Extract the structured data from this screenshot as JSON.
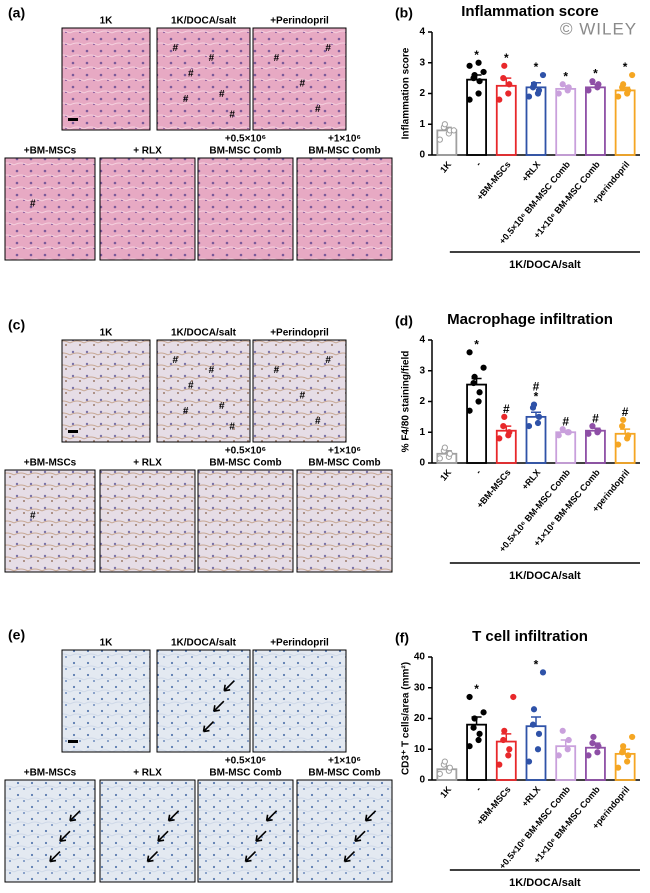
{
  "panels": [
    {
      "label": "(a)",
      "images": [
        {
          "caption": [
            "1K"
          ]
        },
        {
          "caption": [
            "1K/DOCA/salt"
          ]
        },
        {
          "caption": [
            "+Perindopril"
          ]
        },
        {
          "caption": [
            "+BM-MSCs"
          ]
        },
        {
          "caption": [
            "+ RLX"
          ]
        },
        {
          "caption": [
            "+0.5×10⁶",
            "BM-MSC Comb"
          ]
        },
        {
          "caption": [
            "+1×10⁶",
            "BM-MSC Comb"
          ]
        }
      ]
    },
    {
      "label": "(c)",
      "images": [
        {
          "caption": [
            "1K"
          ]
        },
        {
          "caption": [
            "1K/DOCA/salt"
          ]
        },
        {
          "caption": [
            "+Perindopril"
          ]
        },
        {
          "caption": [
            "+BM-MSCs"
          ]
        },
        {
          "caption": [
            "+ RLX"
          ]
        },
        {
          "caption": [
            "+0.5×10⁶",
            "BM-MSC Comb"
          ]
        },
        {
          "caption": [
            "+1×10⁶",
            "BM-MSC Comb"
          ]
        }
      ]
    },
    {
      "label": "(e)",
      "images": [
        {
          "caption": [
            "1K"
          ]
        },
        {
          "caption": [
            "1K/DOCA/salt"
          ]
        },
        {
          "caption": [
            "+Perindopril"
          ]
        },
        {
          "caption": [
            "+BM-MSCs"
          ]
        },
        {
          "caption": [
            "+ RLX"
          ]
        },
        {
          "caption": [
            "+0.5×10⁶",
            "BM-MSC Comb"
          ]
        },
        {
          "caption": [
            "+1×10⁶",
            "BM-MSC Comb"
          ]
        }
      ]
    }
  ],
  "marker_hash": "#",
  "watermark": "© WILEY",
  "chart_data": [
    {
      "type": "bar",
      "panel_label": "(b)",
      "title": "Inflammation score",
      "ylabel": "Inflammation score",
      "categories": [
        "1K",
        "-",
        "+BM-MSCs",
        "+RLX",
        "+0.5×10⁶ BM-MSC Comb",
        "+1×10⁶ BM-MSC Comb",
        "+perindopril"
      ],
      "colors": [
        "#a0a0a0",
        "#000000",
        "#e8282b",
        "#2f52a8",
        "#c9a0dc",
        "#8e4fa6",
        "#f5a623"
      ],
      "values": [
        0.8,
        2.45,
        2.25,
        2.2,
        2.15,
        2.2,
        2.1
      ],
      "errors": [
        0.1,
        0.15,
        0.25,
        0.15,
        0.1,
        0.1,
        0.1
      ],
      "points": [
        [
          0.5,
          0.7,
          0.8,
          0.9,
          1.0,
          0.8
        ],
        [
          1.8,
          2.0,
          2.4,
          2.5,
          2.6,
          2.7,
          2.9,
          3.0
        ],
        [
          1.8,
          2.0,
          2.3,
          2.5,
          2.9
        ],
        [
          1.9,
          2.0,
          2.1,
          2.2,
          2.3,
          2.6
        ],
        [
          2.0,
          2.1,
          2.2,
          2.3
        ],
        [
          2.1,
          2.2,
          2.3,
          2.4
        ],
        [
          1.9,
          2.0,
          2.1,
          2.2,
          2.3,
          2.6
        ]
      ],
      "annotations": [
        null,
        [
          "*"
        ],
        [
          "*"
        ],
        [
          "*"
        ],
        [
          "*"
        ],
        [
          "*"
        ],
        [
          "*"
        ]
      ],
      "group_label": "1K/DOCA/salt",
      "ylim": [
        0,
        4
      ],
      "yticks": [
        0,
        1,
        2,
        3,
        4
      ]
    },
    {
      "type": "bar",
      "panel_label": "(d)",
      "title": "Macrophage infiltration",
      "ylabel": "% F4/80 staining/field",
      "categories": [
        "1K",
        "-",
        "+BM-MSCs",
        "+RLX",
        "+0.5×10⁶ BM-MSC Comb",
        "+1×10⁶ BM-MSC Comb",
        "+perindopril"
      ],
      "colors": [
        "#a0a0a0",
        "#000000",
        "#e8282b",
        "#2f52a8",
        "#c9a0dc",
        "#8e4fa6",
        "#f5a623"
      ],
      "values": [
        0.3,
        2.55,
        1.05,
        1.5,
        1.0,
        1.05,
        0.95
      ],
      "errors": [
        0.1,
        0.2,
        0.15,
        0.15,
        0.05,
        0.08,
        0.15
      ],
      "points": [
        [
          0.15,
          0.2,
          0.3,
          0.4,
          0.5
        ],
        [
          1.7,
          2.0,
          2.3,
          2.6,
          2.8,
          3.1,
          3.6
        ],
        [
          0.8,
          0.9,
          1.0,
          1.2,
          1.5
        ],
        [
          1.2,
          1.3,
          1.5,
          1.8,
          1.9
        ],
        [
          0.9,
          1.0,
          1.0,
          1.1
        ],
        [
          0.95,
          1.0,
          1.05,
          1.2
        ],
        [
          0.6,
          0.8,
          0.9,
          1.2,
          1.4
        ]
      ],
      "annotations": [
        null,
        [
          "*"
        ],
        [
          "#"
        ],
        [
          "#",
          "*"
        ],
        [
          "#"
        ],
        [
          "#"
        ],
        [
          "#"
        ]
      ],
      "group_label": "1K/DOCA/salt",
      "ylim": [
        0,
        4
      ],
      "yticks": [
        0,
        1,
        2,
        3,
        4
      ]
    },
    {
      "type": "bar",
      "panel_label": "(f)",
      "title": "T cell infiltration",
      "ylabel": "CD3⁺ T cells/area (mm²)",
      "categories": [
        "1K",
        "-",
        "+BM-MSCs",
        "+RLX",
        "+0.5×10⁶ BM-MSC Comb",
        "+1×10⁶ BM-MSC Comb",
        "+perindopril"
      ],
      "colors": [
        "#a0a0a0",
        "#000000",
        "#e8282b",
        "#2f52a8",
        "#c9a0dc",
        "#8e4fa6",
        "#f5a623"
      ],
      "values": [
        3.5,
        18,
        12.5,
        17.5,
        11,
        10.5,
        8.5
      ],
      "errors": [
        1,
        2.5,
        2.5,
        3,
        2,
        1.5,
        1.5
      ],
      "points": [
        [
          2,
          3,
          4,
          5,
          6
        ],
        [
          11,
          13,
          15,
          17,
          20,
          22,
          27
        ],
        [
          5,
          8,
          10,
          13,
          16,
          27
        ],
        [
          6,
          10,
          15,
          18,
          23,
          35
        ],
        [
          8,
          10,
          13,
          16
        ],
        [
          8,
          9,
          11,
          12,
          14
        ],
        [
          4,
          6,
          8,
          9,
          11,
          14
        ]
      ],
      "annotations": [
        null,
        [
          "*"
        ],
        null,
        [
          "*"
        ],
        null,
        null,
        null
      ],
      "group_label": "1K/DOCA/salt",
      "ylim": [
        0,
        40
      ],
      "yticks": [
        0,
        10,
        20,
        30,
        40
      ]
    }
  ]
}
